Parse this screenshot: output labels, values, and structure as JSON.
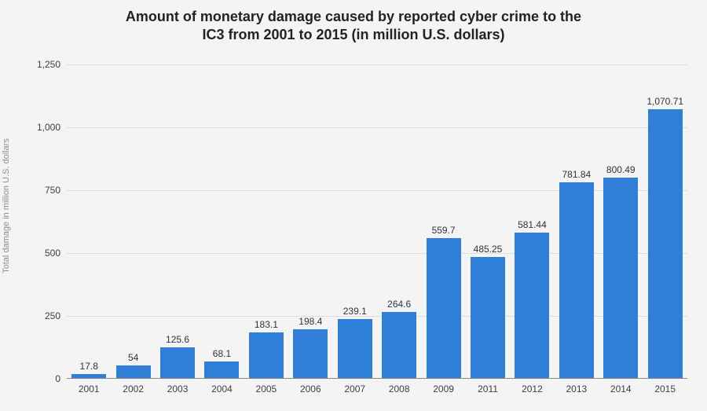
{
  "chart": {
    "type": "bar",
    "title_line1": "Amount of monetary damage caused by reported cyber crime to the",
    "title_line2": "IC3 from 2001 to 2015 (in million U.S. dollars)",
    "title_fontsize": 18,
    "title_color": "#222222",
    "ylabel": "Total damage in million U.S. dollars",
    "ylabel_fontsize": 11,
    "ylabel_color": "#8a8f97",
    "background_color": "#f4f4f5",
    "grid_color": "#dcdcdc",
    "axis_line_color": "#888888",
    "tick_fontsize": 12,
    "tick_color": "#3a3f44",
    "value_label_fontsize": 12,
    "value_label_color": "#2e3338",
    "bar_color": "#2f7ed8",
    "bar_width_pct": 78,
    "ylim": [
      0,
      1250
    ],
    "yticks": [
      0,
      250,
      500,
      750,
      1000,
      1250
    ],
    "ytick_labels": [
      "0",
      "250",
      "500",
      "750",
      "1,000",
      "1,250"
    ],
    "categories": [
      "2001",
      "2002",
      "2003",
      "2004",
      "2005",
      "2006",
      "2007",
      "2008",
      "2009",
      "2011",
      "2012",
      "2013",
      "2014",
      "2015"
    ],
    "values": [
      17.8,
      54,
      125.6,
      68.1,
      183.1,
      198.4,
      239.1,
      264.6,
      559.7,
      485.25,
      581.44,
      781.84,
      800.49,
      1070.71
    ],
    "value_labels": [
      "17.8",
      "54",
      "125.6",
      "68.1",
      "183.1",
      "198.4",
      "239.1",
      "264.6",
      "559.7",
      "485.25",
      "581.44",
      "781.84",
      "800.49",
      "1,070.71"
    ]
  }
}
